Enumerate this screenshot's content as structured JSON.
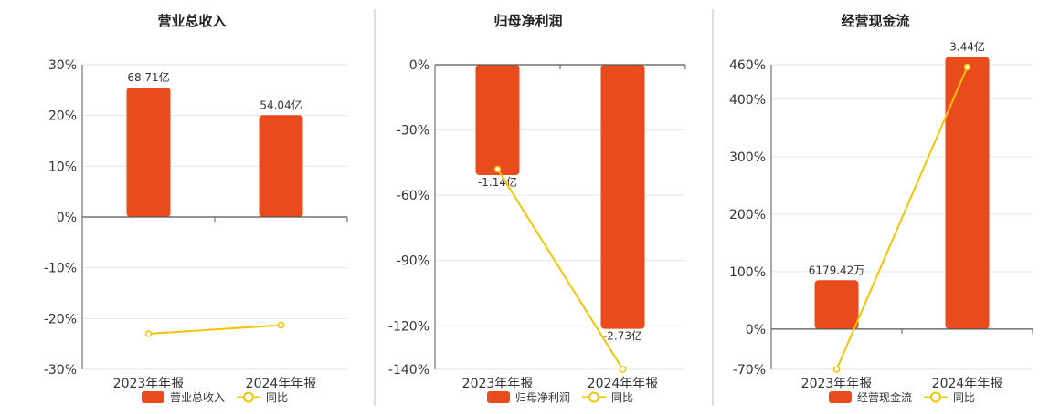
{
  "colors": {
    "bar": "#E84B1C",
    "line": "#F5C400",
    "axis": "#555555",
    "grid": "#E6E6E6",
    "divider": "#BBBBBB",
    "text": "#333333"
  },
  "chart_data": [
    {
      "type": "bar",
      "title": "营业总收入",
      "categories": [
        "2023年年报",
        "2024年年报"
      ],
      "series": [
        {
          "name": "营业总收入",
          "kind": "bar",
          "axis": "value",
          "labels": [
            "68.71亿",
            "54.04亿"
          ],
          "values": [
            68.71,
            54.04
          ],
          "unit": "亿"
        },
        {
          "name": "同比",
          "kind": "line",
          "axis": "percent",
          "values": [
            -23.0,
            -21.3
          ]
        }
      ],
      "ylim": [
        -30,
        30
      ],
      "yticks": [
        "30%",
        "20%",
        "10%",
        "0%",
        "-10%",
        "-20%",
        "-30%"
      ],
      "ytick_values": [
        30,
        20,
        10,
        0,
        -10,
        -20,
        -30
      ],
      "legend_position": "bottom",
      "grid": true
    },
    {
      "type": "bar",
      "title": "归母净利润",
      "categories": [
        "2023年年报",
        "2024年年报"
      ],
      "series": [
        {
          "name": "归母净利润",
          "kind": "bar",
          "axis": "value",
          "labels": [
            "-1.14亿",
            "-2.73亿"
          ],
          "values": [
            -1.14,
            -2.73
          ],
          "unit": "亿"
        },
        {
          "name": "同比",
          "kind": "line",
          "axis": "percent",
          "values": [
            -48.0,
            -140.0
          ]
        }
      ],
      "ylim": [
        -140,
        0
      ],
      "yticks": [
        "0%",
        "-30%",
        "-60%",
        "-90%",
        "-120%",
        "-140%"
      ],
      "ytick_values": [
        0,
        -30,
        -60,
        -90,
        -120,
        -140
      ],
      "legend_position": "bottom",
      "grid": true
    },
    {
      "type": "bar",
      "title": "经营现金流",
      "categories": [
        "2023年年报",
        "2024年年报"
      ],
      "series": [
        {
          "name": "经营现金流",
          "kind": "bar",
          "axis": "value",
          "labels": [
            "6179.42万",
            "3.44亿"
          ],
          "values": [
            0.6179,
            3.44
          ],
          "unit": "亿"
        },
        {
          "name": "同比",
          "kind": "line",
          "axis": "percent",
          "values": [
            -70.0,
            456.0
          ]
        }
      ],
      "ylim": [
        -70,
        460
      ],
      "yticks": [
        "460%",
        "400%",
        "300%",
        "200%",
        "100%",
        "0%",
        "-70%"
      ],
      "ytick_values": [
        460,
        400,
        300,
        200,
        100,
        0,
        -70
      ],
      "legend_position": "bottom",
      "grid": true
    }
  ]
}
